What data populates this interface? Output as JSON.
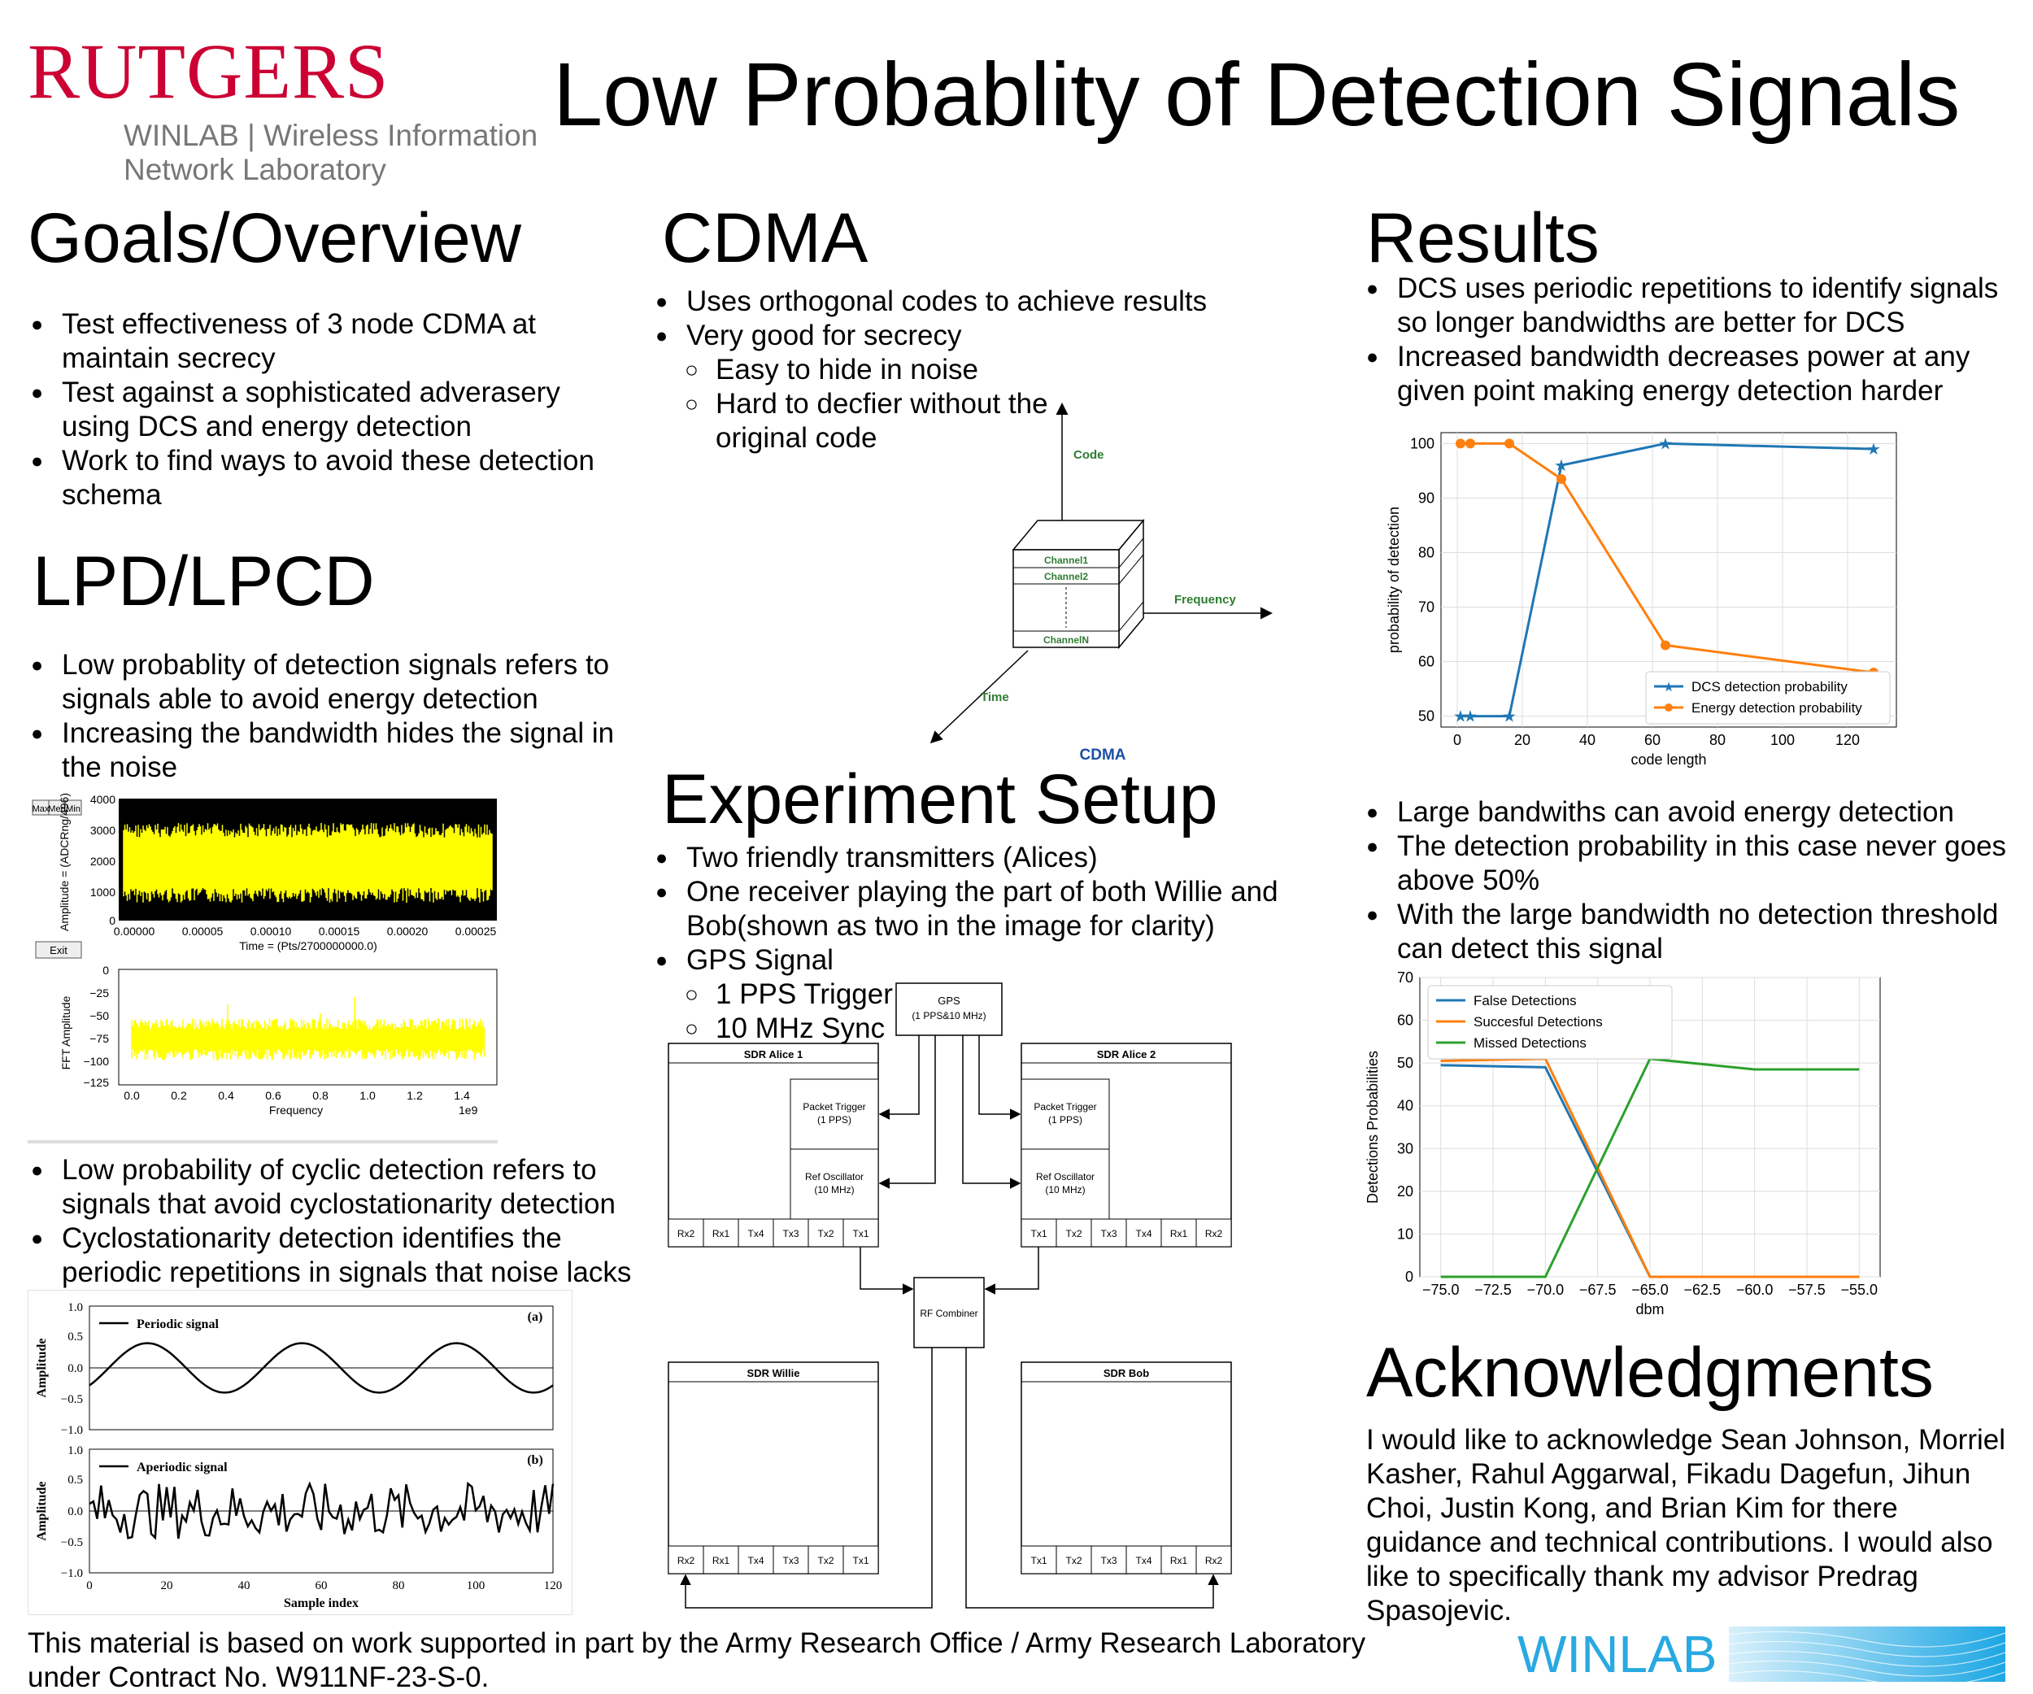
{
  "header": {
    "logo_word": "RUTGERS",
    "logo_sub1": "WINLAB | Wireless Information",
    "logo_sub2": "Network Laboratory",
    "title": "Low Probablity of Detection Signals"
  },
  "colors": {
    "rutgers_red": "#cc0033",
    "winlab_blue": "#29a9e1",
    "dcs_blue": "#1f77b4",
    "energy_orange": "#ff7f0e",
    "missed_green": "#2ca02c"
  },
  "goals": {
    "heading": "Goals/Overview",
    "items": [
      "Test effectiveness of 3 node CDMA at maintain secrecy",
      "Test against a sophisticated adverasery using DCS and energy detection",
      "Work to find ways to avoid these detection schema"
    ]
  },
  "lpd": {
    "heading": "LPD/LPCD",
    "items": [
      "Low probablity of detection signals refers to signals able to avoid energy detection",
      "Increasing the bandwidth hides the signal in the noise"
    ],
    "items2": [
      "Low probability of cyclic detection refers to signals that avoid cyclostationarity detection",
      "Cyclostationarity detection identifies the periodic repetitions in signals that noise lacks"
    ]
  },
  "scope": {
    "buttons": [
      "Max",
      "Med",
      "Min"
    ],
    "exit": "Exit",
    "top_ylabel": "Amplitude = (ADCRng/496)",
    "top_yticks": [
      "4000",
      "3000",
      "2000",
      "1000",
      "0"
    ],
    "top_xticks": [
      "0.00000",
      "0.00005",
      "0.00010",
      "0.00015",
      "0.00020",
      "0.00025"
    ],
    "top_xlabel": "Time = (Pts/2700000000.0)",
    "bot_ylabel": "FFT Amplitude",
    "bot_yticks": [
      "0",
      "−25",
      "−50",
      "−75",
      "−100",
      "−125"
    ],
    "bot_xticks": [
      "0.0",
      "0.2",
      "0.4",
      "0.6",
      "0.8",
      "1.0",
      "1.2",
      "1.4"
    ],
    "bot_xlabel": "Frequency",
    "bot_xexp": "1e9"
  },
  "periodic": {
    "ylabel": "Amplitude",
    "yticks": [
      "1.0",
      "0.5",
      "0.0",
      "−0.5",
      "−1.0"
    ],
    "xticks": [
      "0",
      "20",
      "40",
      "60",
      "80",
      "100",
      "120"
    ],
    "xlabel": "Sample index",
    "a_legend": "Periodic signal",
    "a_tag": "(a)",
    "b_legend": "Aperiodic signal",
    "b_tag": "(b)"
  },
  "cdma": {
    "heading": "CDMA",
    "items": [
      "Uses orthogonal codes to achieve results",
      "Very good for secrecy"
    ],
    "subitems": [
      "Easy to hide in noise",
      "Hard to decfier without the original code"
    ],
    "fig": {
      "code": "Code",
      "frequency": "Frequency",
      "time": "Time",
      "ch1": "Channel1",
      "ch2": "Channel2",
      "chn": "ChannelN",
      "caption": "CDMA"
    }
  },
  "setup": {
    "heading": "Experiment Setup",
    "items": [
      "Two friendly transmitters (Alices)",
      "One receiver playing the part of both Willie and Bob(shown as two in the image for clarity)",
      "GPS Signal"
    ],
    "subitems": [
      "1 PPS Trigger",
      "10 MHz Sync"
    ],
    "diagram": {
      "gps": "GPS",
      "gps_sub": "(1 PPS&10 MHz)",
      "alice1": "SDR Alice 1",
      "alice2": "SDR Alice 2",
      "willie": "SDR Willie",
      "bob": "SDR Bob",
      "packet_trigger": "Packet Trigger",
      "pps": "(1 PPS)",
      "ref_osc": "Ref Oscillator",
      "mhz": "(10 MHz)",
      "rf_combiner": "RF Combiner",
      "ports_left": [
        "Rx2",
        "Rx1",
        "Tx4",
        "Tx3",
        "Tx2",
        "Tx1"
      ],
      "ports_right": [
        "Tx1",
        "Tx2",
        "Tx3",
        "Tx4",
        "Rx1",
        "Rx2"
      ]
    }
  },
  "results": {
    "heading": "Results",
    "items": [
      "DCS uses periodic repetitions to identify signals so longer bandwidths are better for DCS",
      "Increased bandwidth decreases power at any given point making energy detection harder"
    ],
    "items2": [
      "Large bandwiths can avoid energy detection",
      "The detection probability in this case never goes above 50%",
      "With the large bandwidth no detection threshold can detect this signal"
    ]
  },
  "chart_data": [
    {
      "type": "line",
      "xlabel": "code length",
      "ylabel": "probability of detection",
      "xlim": [
        -5,
        135
      ],
      "ylim": [
        48,
        102
      ],
      "xticks": [
        0,
        20,
        40,
        60,
        80,
        100,
        120
      ],
      "yticks": [
        50,
        60,
        70,
        80,
        90,
        100
      ],
      "grid": true,
      "legend": "bottom-right",
      "series": [
        {
          "name": "DCS detection probability",
          "color": "#1f77b4",
          "marker": "star",
          "x": [
            1,
            4,
            16,
            32,
            64,
            128
          ],
          "y": [
            50,
            50,
            50,
            96,
            100,
            99
          ]
        },
        {
          "name": "Energy detection probability",
          "color": "#ff7f0e",
          "marker": "circle",
          "x": [
            1,
            4,
            16,
            32,
            64,
            128
          ],
          "y": [
            100,
            100,
            100,
            93.5,
            63,
            58
          ]
        }
      ]
    },
    {
      "type": "line",
      "xlabel": "dbm",
      "ylabel": "Detections Probabilities",
      "xlim": [
        -76,
        -54
      ],
      "ylim": [
        0,
        70
      ],
      "xticks": [
        -75,
        -72.5,
        -70,
        -67.5,
        -65,
        -62.5,
        -60,
        -57.5,
        -55
      ],
      "xtick_labels": [
        "−75.0",
        "−72.5",
        "−70.0",
        "−67.5",
        "−65.0",
        "−62.5",
        "−60.0",
        "−57.5",
        "−55.0"
      ],
      "yticks": [
        0,
        10,
        20,
        30,
        40,
        50,
        60,
        70
      ],
      "grid": true,
      "legend": "top-left",
      "series": [
        {
          "name": "False Detections",
          "color": "#1f77b4",
          "x": [
            -75,
            -70,
            -65,
            -60,
            -55
          ],
          "y": [
            49.5,
            49,
            0,
            0,
            0
          ]
        },
        {
          "name": "Succesful Detections",
          "color": "#ff7f0e",
          "x": [
            -75,
            -70,
            -65,
            -60,
            -55
          ],
          "y": [
            50.5,
            51,
            0,
            0,
            0
          ]
        },
        {
          "name": "Missed Detections",
          "color": "#2ca02c",
          "x": [
            -75,
            -70,
            -65,
            -60,
            -55
          ],
          "y": [
            0,
            0,
            51,
            48.5,
            48.5
          ]
        }
      ]
    }
  ],
  "ack": {
    "heading": "Acknowledgments",
    "text": "I would like to acknowledge Sean Johnson, Morriel Kasher, Rahul Aggarwal, Fikadu Dagefun, Jihun Choi, Justin Kong, and Brian Kim for there guidance and technical contributions. I would also like to specifically thank my advisor Predrag Spasojevic."
  },
  "footer": {
    "line1": "This material is based on work supported in part by the Army Research Office / Army Research Laboratory",
    "line2": "under Contract No. W911NF-23-S-0.",
    "winlab": "WINLAB"
  }
}
